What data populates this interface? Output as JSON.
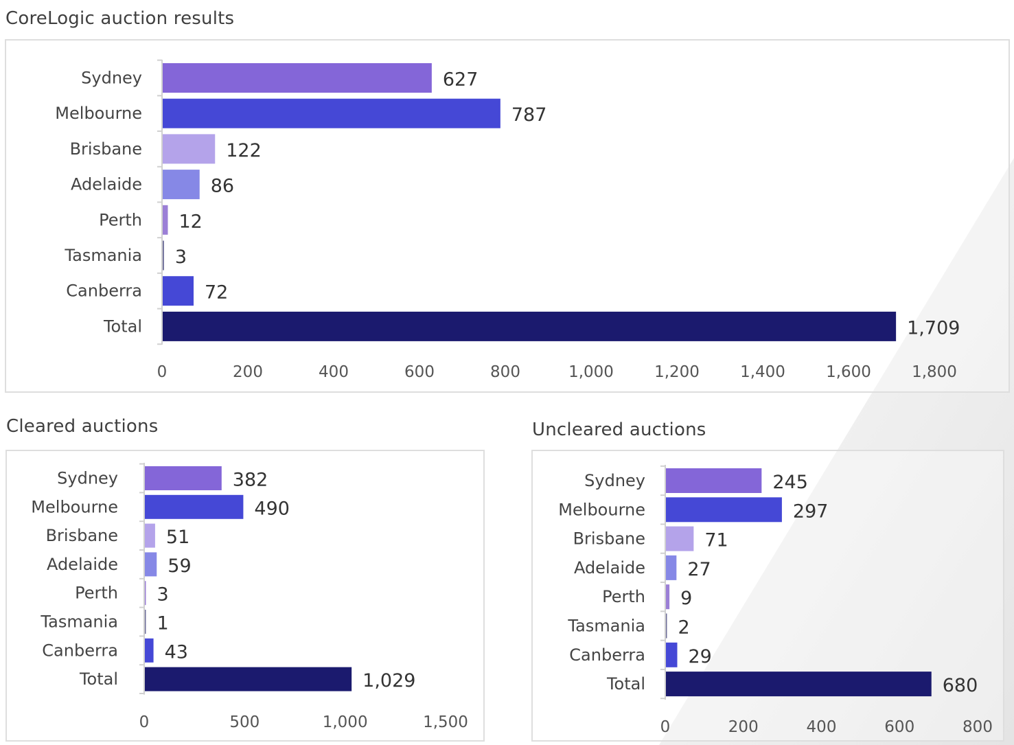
{
  "colors": {
    "sydney": "#8466d8",
    "melbourne": "#4548d6",
    "brisbane": "#b4a3ea",
    "adelaide": "#8688e6",
    "perth": "#9b7fd6",
    "tasmania": "#6f6f9a",
    "canberra": "#4548d6",
    "total": "#1b1a6e",
    "axis": "#d0d0d0",
    "panel_border": "#dedede"
  },
  "chart_data": [
    {
      "id": "results",
      "type": "bar",
      "orientation": "horizontal",
      "title": "CoreLogic auction results",
      "categories": [
        "Sydney",
        "Melbourne",
        "Brisbane",
        "Adelaide",
        "Perth",
        "Tasmania",
        "Canberra",
        "Total"
      ],
      "values": [
        627,
        787,
        122,
        86,
        12,
        3,
        72,
        1709
      ],
      "value_labels": [
        "627",
        "787",
        "122",
        "86",
        "12",
        "3",
        "72",
        "1,709"
      ],
      "ticks": [
        0,
        200,
        400,
        600,
        800,
        1000,
        1200,
        1400,
        1600,
        1800
      ],
      "tick_labels": [
        "0",
        "200",
        "400",
        "600",
        "800",
        "1,000",
        "1,200",
        "1,400",
        "1,600",
        "1,800"
      ],
      "xlim": [
        0,
        1800
      ],
      "xlabel": "",
      "ylabel": "",
      "grid": false,
      "legend": "none"
    },
    {
      "id": "cleared",
      "type": "bar",
      "orientation": "horizontal",
      "title": "Cleared auctions",
      "categories": [
        "Sydney",
        "Melbourne",
        "Brisbane",
        "Adelaide",
        "Perth",
        "Tasmania",
        "Canberra",
        "Total"
      ],
      "values": [
        382,
        490,
        51,
        59,
        3,
        1,
        43,
        1029
      ],
      "value_labels": [
        "382",
        "490",
        "51",
        "59",
        "3",
        "1",
        "43",
        "1,029"
      ],
      "ticks": [
        0,
        500,
        1000,
        1500
      ],
      "tick_labels": [
        "0",
        "500",
        "1,000",
        "1,500"
      ],
      "xlim": [
        0,
        1500
      ],
      "xlabel": "",
      "ylabel": "",
      "grid": false,
      "legend": "none"
    },
    {
      "id": "uncleared",
      "type": "bar",
      "orientation": "horizontal",
      "title": "Uncleared auctions",
      "categories": [
        "Sydney",
        "Melbourne",
        "Brisbane",
        "Adelaide",
        "Perth",
        "Tasmania",
        "Canberra",
        "Total"
      ],
      "values": [
        245,
        297,
        71,
        27,
        9,
        2,
        29,
        680
      ],
      "value_labels": [
        "245",
        "297",
        "71",
        "27",
        "9",
        "2",
        "29",
        "680"
      ],
      "ticks": [
        0,
        200,
        400,
        600,
        800
      ],
      "tick_labels": [
        "0",
        "200",
        "400",
        "600",
        "800"
      ],
      "xlim": [
        0,
        800
      ],
      "xlabel": "",
      "ylabel": "",
      "grid": false,
      "legend": "none"
    }
  ]
}
